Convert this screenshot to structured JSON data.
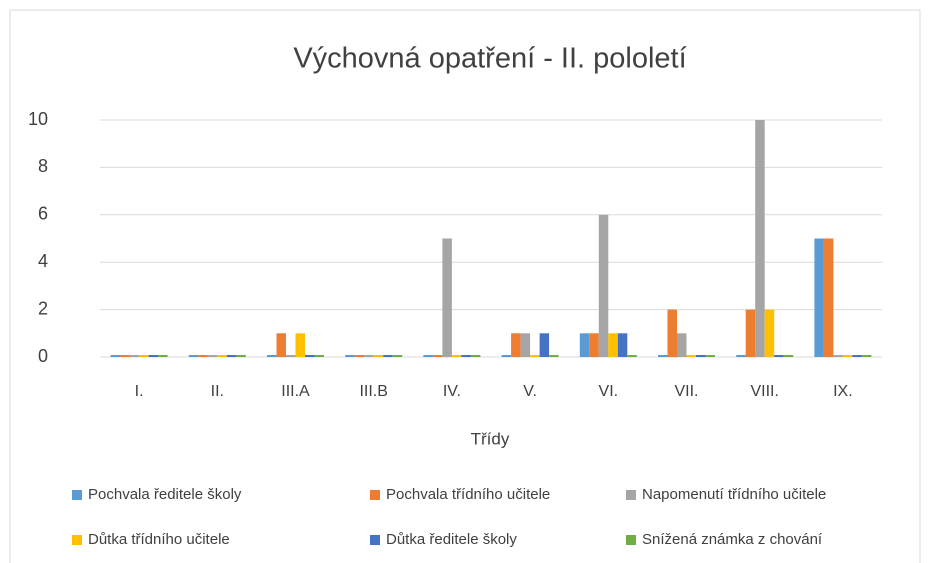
{
  "chart_data": {
    "type": "bar",
    "title": "Výchovná opatření - II. pololetí",
    "x_label": "Třídy",
    "categories": [
      "I.",
      "II.",
      "III.A",
      "III.B",
      "IV.",
      "V.",
      "VI.",
      "VII.",
      "VIII.",
      "IX."
    ],
    "series": [
      {
        "name": "Pochvala ředitele školy",
        "color": "#5b9bd5",
        "values": [
          0,
          0,
          0,
          0,
          0,
          0,
          1,
          0,
          0,
          5
        ]
      },
      {
        "name": "Pochvala třídního učitele",
        "color": "#ed7d31",
        "values": [
          0,
          0,
          1,
          0,
          0,
          1,
          1,
          2,
          2,
          5
        ]
      },
      {
        "name": "Napomenutí třídního učitele",
        "color": "#a5a5a5",
        "values": [
          0,
          0,
          0,
          0,
          5,
          1,
          6,
          1,
          10,
          0
        ]
      },
      {
        "name": "Důtka třídního učitele",
        "color": "#ffc000",
        "values": [
          0,
          0,
          1,
          0,
          0,
          0,
          1,
          0,
          2,
          0
        ]
      },
      {
        "name": "Důtka ředitele školy",
        "color": "#4472c4",
        "values": [
          0,
          0,
          0,
          0,
          0,
          1,
          1,
          0,
          0,
          0
        ]
      },
      {
        "name": "Snížená známka z chování",
        "color": "#70ad47",
        "values": [
          0,
          0,
          0,
          0,
          0,
          0,
          0,
          0,
          0,
          0
        ]
      }
    ],
    "ylim": [
      0,
      10
    ],
    "yticks": [
      0,
      2,
      4,
      6,
      8,
      10
    ],
    "grid": true,
    "legend": "bottom"
  }
}
